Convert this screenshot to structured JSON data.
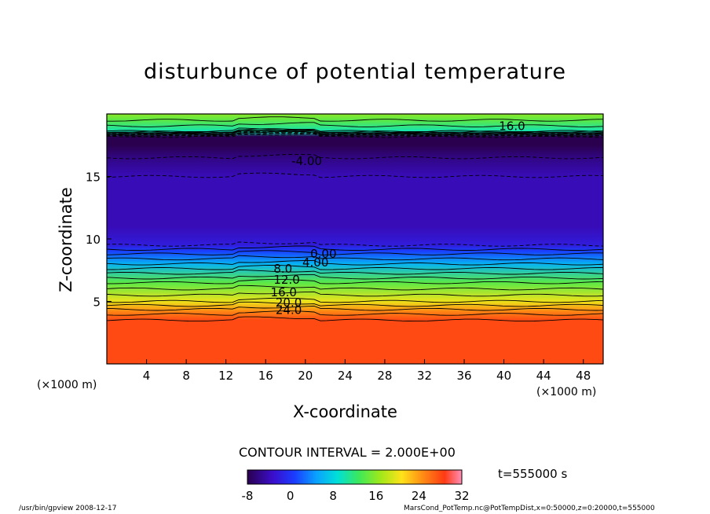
{
  "chart_data": {
    "type": "heatmap",
    "title": "disturbunce of potential temperature",
    "xlabel": "X-coordinate",
    "ylabel": "Z-coordinate",
    "x_unit": "(×1000 m)",
    "xlim": [
      0,
      50
    ],
    "ylim": [
      0,
      20
    ],
    "x_ticks": [
      4,
      8,
      12,
      16,
      20,
      24,
      28,
      32,
      36,
      40,
      44,
      48
    ],
    "y_ticks": [
      5,
      10,
      15
    ],
    "contour_interval": "CONTOUR INTERVAL = 2.000E+00",
    "contour_labels": [
      "-4.00",
      "0.00",
      "4.00",
      "8.0",
      "12.0",
      "16.0",
      "20.0",
      "24.0",
      "16.0"
    ],
    "profile": [
      {
        "z": 0,
        "value": 28
      },
      {
        "z": 3.5,
        "value": 28
      },
      {
        "z": 4.2,
        "value": 25
      },
      {
        "z": 5,
        "value": 20
      },
      {
        "z": 6.5,
        "value": 14
      },
      {
        "z": 8,
        "value": 6
      },
      {
        "z": 9,
        "value": 1
      },
      {
        "z": 9.5,
        "value": -2
      },
      {
        "z": 11,
        "value": -4
      },
      {
        "z": 15,
        "value": -4
      },
      {
        "z": 16.5,
        "value": -6
      },
      {
        "z": 17.5,
        "value": -8
      },
      {
        "z": 18.2,
        "value": -8
      },
      {
        "z": 18.6,
        "value": 10
      },
      {
        "z": 19.5,
        "value": 14
      },
      {
        "z": 20,
        "value": 16
      }
    ],
    "colorbar": {
      "min": -8,
      "max": 32,
      "ticks": [
        -8,
        0,
        8,
        16,
        24,
        32
      ]
    },
    "grid": false,
    "legend": "colorbar-bottom"
  },
  "time_label": "t=555000 s",
  "footer_left": "/usr/bin/gpview   2008-12-17",
  "footer_right": "MarsCond_PotTemp.nc@PotTempDist,x=0:50000,z=0:20000,t=555000"
}
